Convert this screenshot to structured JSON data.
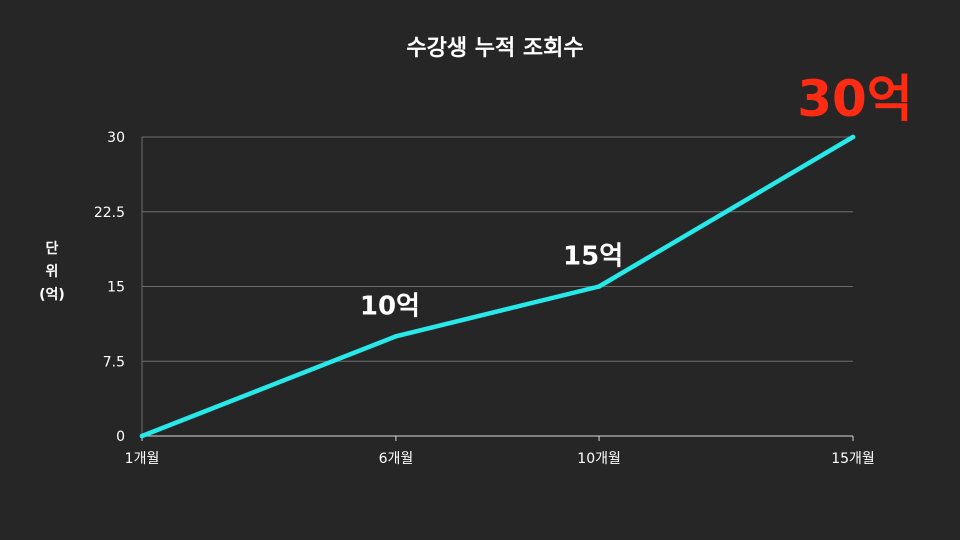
{
  "colors": {
    "background": "#262626",
    "line": "#27e9e9",
    "grid": "#6e6e6e",
    "text": "#ffffff",
    "highlight": "#ff2b12"
  },
  "chart_data": {
    "type": "line",
    "title": "수강생 누적 조회수",
    "ylabel_lines": [
      "단",
      "위",
      "(억)"
    ],
    "xlabel": "",
    "categories": [
      "1개월",
      "6개월",
      "10개월",
      "15개월"
    ],
    "x": [
      1,
      6,
      10,
      15
    ],
    "series": [
      {
        "values": [
          0,
          10,
          15,
          30
        ]
      }
    ],
    "yticks": [
      "0",
      "7.5",
      "15",
      "22.5",
      "30"
    ],
    "ylim": [
      0,
      30
    ],
    "xlim": [
      1,
      15
    ],
    "grid": true,
    "annotations": [
      {
        "text": "10억",
        "x": 6,
        "y": 10
      },
      {
        "text": "15억",
        "x": 10,
        "y": 15
      },
      {
        "text": "30억",
        "x": 15,
        "y": 30,
        "highlight": true
      }
    ]
  }
}
